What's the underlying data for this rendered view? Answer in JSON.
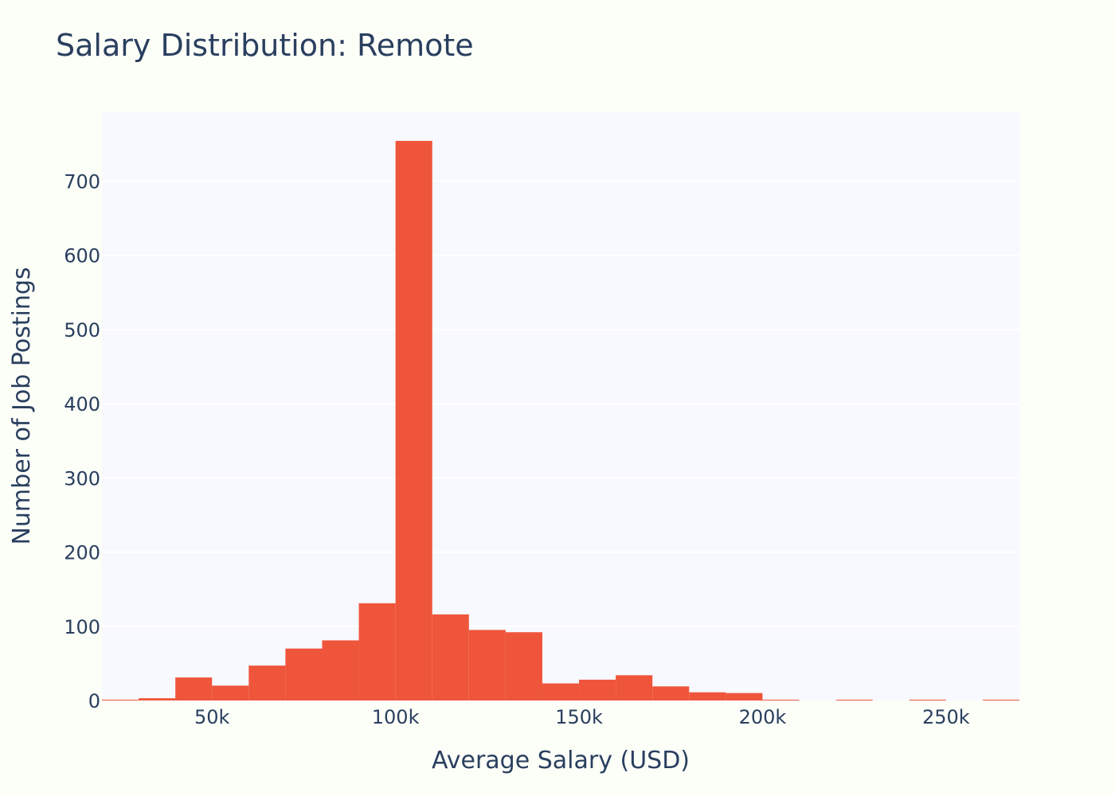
{
  "chart_data": {
    "type": "bar",
    "title": "Salary Distribution: Remote",
    "xlabel": "Average Salary (USD)",
    "ylabel": "Number of Job Postings",
    "bin_width": 10000,
    "bins": [
      {
        "start": 20000,
        "end": 30000,
        "count": 1
      },
      {
        "start": 30000,
        "end": 40000,
        "count": 3
      },
      {
        "start": 40000,
        "end": 50000,
        "count": 31
      },
      {
        "start": 50000,
        "end": 60000,
        "count": 20
      },
      {
        "start": 60000,
        "end": 70000,
        "count": 47
      },
      {
        "start": 70000,
        "end": 80000,
        "count": 70
      },
      {
        "start": 80000,
        "end": 90000,
        "count": 81
      },
      {
        "start": 90000,
        "end": 100000,
        "count": 131
      },
      {
        "start": 100000,
        "end": 110000,
        "count": 754
      },
      {
        "start": 110000,
        "end": 120000,
        "count": 116
      },
      {
        "start": 120000,
        "end": 130000,
        "count": 95
      },
      {
        "start": 130000,
        "end": 140000,
        "count": 92
      },
      {
        "start": 140000,
        "end": 150000,
        "count": 23
      },
      {
        "start": 150000,
        "end": 160000,
        "count": 28
      },
      {
        "start": 160000,
        "end": 170000,
        "count": 34
      },
      {
        "start": 170000,
        "end": 180000,
        "count": 19
      },
      {
        "start": 180000,
        "end": 190000,
        "count": 11
      },
      {
        "start": 190000,
        "end": 200000,
        "count": 10
      },
      {
        "start": 200000,
        "end": 210000,
        "count": 1
      },
      {
        "start": 210000,
        "end": 220000,
        "count": 0
      },
      {
        "start": 220000,
        "end": 230000,
        "count": 1
      },
      {
        "start": 230000,
        "end": 240000,
        "count": 0
      },
      {
        "start": 240000,
        "end": 250000,
        "count": 1
      },
      {
        "start": 250000,
        "end": 260000,
        "count": 0
      },
      {
        "start": 260000,
        "end": 270000,
        "count": 1
      }
    ],
    "xlim": [
      20000,
      270000
    ],
    "ylim": [
      0,
      793.7
    ],
    "x_ticks": [
      {
        "value": 50000,
        "label": "50k"
      },
      {
        "value": 100000,
        "label": "100k"
      },
      {
        "value": 150000,
        "label": "150k"
      },
      {
        "value": 200000,
        "label": "200k"
      },
      {
        "value": 250000,
        "label": "250k"
      }
    ],
    "y_ticks": [
      {
        "value": 0,
        "label": "0"
      },
      {
        "value": 100,
        "label": "100"
      },
      {
        "value": 200,
        "label": "200"
      },
      {
        "value": 300,
        "label": "300"
      },
      {
        "value": 400,
        "label": "400"
      },
      {
        "value": 500,
        "label": "500"
      },
      {
        "value": 600,
        "label": "600"
      },
      {
        "value": 700,
        "label": "700"
      }
    ],
    "grid": "horizontal",
    "legend": "none",
    "colors": {
      "bar": "#ef553b",
      "plot_background": "#f8f8ff",
      "page_background": "#fcfff8",
      "grid": "#ffffff",
      "text": "#2a3f5f"
    }
  }
}
